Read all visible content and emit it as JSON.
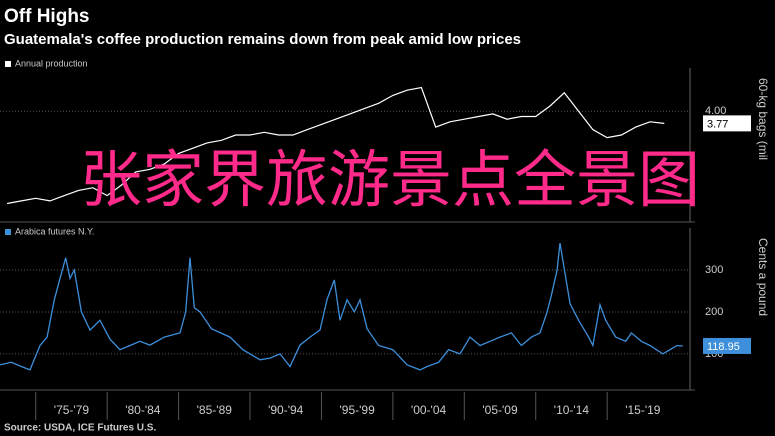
{
  "title": "Off Highs",
  "subtitle": "Guatemala's coffee production remains down from peak amid low prices",
  "source": "Source: USDA, ICE Futures U.S.",
  "overlay_text": "张家界旅游景点全景图",
  "chart_data": [
    {
      "type": "line",
      "axis_label": "60-kg bags (mil",
      "series": [
        {
          "name": "Annual production",
          "color": "#ffffff",
          "x": [
            1973,
            1974,
            1975,
            1976,
            1977,
            1978,
            1979,
            1980,
            1981,
            1982,
            1983,
            1984,
            1985,
            1986,
            1987,
            1988,
            1989,
            1990,
            1991,
            1992,
            1993,
            1994,
            1995,
            1996,
            1997,
            1998,
            1999,
            2000,
            2001,
            2002,
            2003,
            2004,
            2005,
            2006,
            2007,
            2008,
            2009,
            2010,
            2011,
            2012,
            2013,
            2014,
            2015,
            2016,
            2017,
            2018,
            2019
          ],
          "values": [
            2.25,
            2.3,
            2.35,
            2.3,
            2.4,
            2.5,
            2.55,
            2.4,
            2.6,
            2.85,
            2.9,
            3.0,
            3.2,
            3.3,
            3.4,
            3.45,
            3.55,
            3.55,
            3.6,
            3.55,
            3.55,
            3.65,
            3.75,
            3.85,
            3.95,
            4.05,
            4.15,
            4.3,
            4.4,
            4.45,
            3.7,
            3.8,
            3.85,
            3.9,
            3.95,
            3.85,
            3.9,
            3.9,
            4.1,
            4.35,
            4.0,
            3.65,
            3.5,
            3.55,
            3.7,
            3.8,
            3.77
          ],
          "value_labels": [
            null,
            null,
            null,
            null,
            null,
            null,
            null,
            null,
            null,
            null,
            null,
            null,
            null,
            null,
            null,
            null,
            null,
            null,
            null,
            null,
            null,
            null,
            null,
            null,
            null,
            null,
            null,
            null,
            null,
            null,
            null,
            null,
            null,
            null,
            null,
            null,
            null,
            null,
            null,
            null,
            null,
            null,
            null,
            null,
            null,
            null,
            "3.77"
          ]
        }
      ],
      "xlim": [
        1972.5,
        2020.8
      ],
      "ylim": [
        1.9,
        4.82
      ],
      "yticks": [
        {
          "value": 4,
          "label": "4.00"
        }
      ],
      "grid": true
    },
    {
      "type": "line",
      "axis_label": "Cents a pound",
      "series": [
        {
          "name": "Arabica futures N.Y.",
          "color": "#3d8fdb",
          "x": [
            1972.5,
            1973.3,
            1974.0,
            1974.6,
            1975.3,
            1975.8,
            1976.3,
            1976.7,
            1977.1,
            1977.4,
            1977.7,
            1978.2,
            1978.8,
            1979.5,
            1980.2,
            1980.9,
            1981.6,
            1982.3,
            1983.0,
            1984.0,
            1985.1,
            1985.5,
            1985.8,
            1986.1,
            1986.5,
            1987.3,
            1988.6,
            1989.5,
            1990.7,
            1991.4,
            1992.1,
            1992.8,
            1993.5,
            1994.2,
            1994.9,
            1995.4,
            1995.9,
            1996.3,
            1996.8,
            1997.3,
            1997.7,
            1998.2,
            1999.0,
            2000.0,
            2001.0,
            2001.9,
            2002.4,
            2003.2,
            2003.9,
            2004.7,
            2005.4,
            2006.1,
            2006.8,
            2007.5,
            2008.3,
            2009.0,
            2009.7,
            2010.3,
            2010.8,
            2011.1,
            2011.5,
            2011.7,
            2012.4,
            2013.0,
            2013.7,
            2014.0,
            2014.5,
            2014.9,
            2015.6,
            2016.3,
            2016.7,
            2017.4,
            2018.0,
            2018.9,
            2019.4,
            2019.9,
            2020.3
          ],
          "values": [
            74,
            80,
            70,
            62,
            120,
            140,
            229,
            280,
            329,
            280,
            300,
            200,
            157,
            180,
            135,
            110,
            120,
            130,
            121,
            140,
            150,
            200,
            329,
            210,
            200,
            160,
            140,
            110,
            86,
            90,
            100,
            70,
            121,
            140,
            157,
            230,
            276,
            180,
            229,
            200,
            229,
            160,
            120,
            110,
            74,
            62,
            70,
            80,
            110,
            100,
            140,
            120,
            130,
            140,
            150,
            120,
            140,
            150,
            200,
            240,
            300,
            364,
            220,
            180,
            140,
            120,
            217,
            180,
            140,
            130,
            150,
            130,
            120,
            100,
            110,
            120,
            118.95
          ],
          "value_labels": [
            null,
            null,
            null,
            null,
            null,
            null,
            null,
            null,
            null,
            null,
            null,
            null,
            null,
            null,
            null,
            null,
            null,
            null,
            null,
            null,
            null,
            null,
            null,
            null,
            null,
            null,
            null,
            null,
            null,
            null,
            null,
            null,
            null,
            null,
            null,
            null,
            null,
            null,
            null,
            null,
            null,
            null,
            null,
            null,
            null,
            null,
            null,
            null,
            null,
            null,
            null,
            null,
            null,
            null,
            null,
            null,
            null,
            null,
            null,
            null,
            null,
            null,
            null,
            null,
            null,
            null,
            null,
            null,
            null,
            null,
            null,
            null,
            null,
            null,
            null,
            null,
            "118.95"
          ]
        }
      ],
      "xlim": [
        1972.5,
        2020.8
      ],
      "ylim": [
        14,
        400
      ],
      "yticks": [
        100,
        200,
        300
      ],
      "grid": true,
      "xticks": [
        {
          "value": 1977.5,
          "label": "'75-'79"
        },
        {
          "value": 1982.5,
          "label": "'80-'84"
        },
        {
          "value": 1987.5,
          "label": "'85-'89"
        },
        {
          "value": 1992.5,
          "label": "'90-'94"
        },
        {
          "value": 1997.5,
          "label": "'95-'99"
        },
        {
          "value": 2002.5,
          "label": "'00-'04"
        },
        {
          "value": 2007.5,
          "label": "'05-'09"
        },
        {
          "value": 2012.5,
          "label": "'10-'14"
        },
        {
          "value": 2017.5,
          "label": "'15-'19"
        }
      ]
    }
  ]
}
